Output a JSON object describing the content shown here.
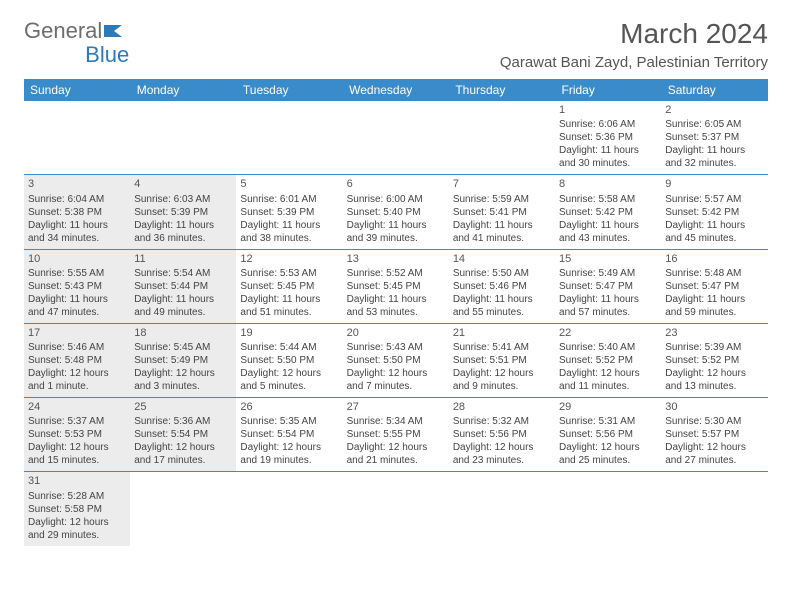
{
  "logo": {
    "part1": "General",
    "part2": "Blue"
  },
  "title": "March 2024",
  "location": "Qarawat Bani Zayd, Palestinian Territory",
  "colors": {
    "header_bg": "#3a8bc9",
    "header_text": "#ffffff",
    "body_text": "#444444",
    "shade_bg": "#ececec",
    "border": "#3a8bc9",
    "logo_gray": "#6d6d6d",
    "logo_blue": "#2e7ab8"
  },
  "typography": {
    "title_fontsize": 28,
    "location_fontsize": 15,
    "dayheader_fontsize": 12,
    "cell_fontsize": 10
  },
  "day_headers": [
    "Sunday",
    "Monday",
    "Tuesday",
    "Wednesday",
    "Thursday",
    "Friday",
    "Saturday"
  ],
  "weeks": [
    [
      {
        "empty": true
      },
      {
        "empty": true
      },
      {
        "empty": true
      },
      {
        "empty": true
      },
      {
        "empty": true
      },
      {
        "n": "1",
        "sr": "Sunrise: 6:06 AM",
        "ss": "Sunset: 5:36 PM",
        "dl1": "Daylight: 11 hours",
        "dl2": "and 30 minutes."
      },
      {
        "n": "2",
        "sr": "Sunrise: 6:05 AM",
        "ss": "Sunset: 5:37 PM",
        "dl1": "Daylight: 11 hours",
        "dl2": "and 32 minutes."
      }
    ],
    [
      {
        "n": "3",
        "shade": true,
        "sr": "Sunrise: 6:04 AM",
        "ss": "Sunset: 5:38 PM",
        "dl1": "Daylight: 11 hours",
        "dl2": "and 34 minutes."
      },
      {
        "n": "4",
        "shade": true,
        "sr": "Sunrise: 6:03 AM",
        "ss": "Sunset: 5:39 PM",
        "dl1": "Daylight: 11 hours",
        "dl2": "and 36 minutes."
      },
      {
        "n": "5",
        "sr": "Sunrise: 6:01 AM",
        "ss": "Sunset: 5:39 PM",
        "dl1": "Daylight: 11 hours",
        "dl2": "and 38 minutes."
      },
      {
        "n": "6",
        "sr": "Sunrise: 6:00 AM",
        "ss": "Sunset: 5:40 PM",
        "dl1": "Daylight: 11 hours",
        "dl2": "and 39 minutes."
      },
      {
        "n": "7",
        "sr": "Sunrise: 5:59 AM",
        "ss": "Sunset: 5:41 PM",
        "dl1": "Daylight: 11 hours",
        "dl2": "and 41 minutes."
      },
      {
        "n": "8",
        "sr": "Sunrise: 5:58 AM",
        "ss": "Sunset: 5:42 PM",
        "dl1": "Daylight: 11 hours",
        "dl2": "and 43 minutes."
      },
      {
        "n": "9",
        "sr": "Sunrise: 5:57 AM",
        "ss": "Sunset: 5:42 PM",
        "dl1": "Daylight: 11 hours",
        "dl2": "and 45 minutes."
      }
    ],
    [
      {
        "n": "10",
        "shade": true,
        "sr": "Sunrise: 5:55 AM",
        "ss": "Sunset: 5:43 PM",
        "dl1": "Daylight: 11 hours",
        "dl2": "and 47 minutes."
      },
      {
        "n": "11",
        "shade": true,
        "sr": "Sunrise: 5:54 AM",
        "ss": "Sunset: 5:44 PM",
        "dl1": "Daylight: 11 hours",
        "dl2": "and 49 minutes."
      },
      {
        "n": "12",
        "sr": "Sunrise: 5:53 AM",
        "ss": "Sunset: 5:45 PM",
        "dl1": "Daylight: 11 hours",
        "dl2": "and 51 minutes."
      },
      {
        "n": "13",
        "sr": "Sunrise: 5:52 AM",
        "ss": "Sunset: 5:45 PM",
        "dl1": "Daylight: 11 hours",
        "dl2": "and 53 minutes."
      },
      {
        "n": "14",
        "sr": "Sunrise: 5:50 AM",
        "ss": "Sunset: 5:46 PM",
        "dl1": "Daylight: 11 hours",
        "dl2": "and 55 minutes."
      },
      {
        "n": "15",
        "sr": "Sunrise: 5:49 AM",
        "ss": "Sunset: 5:47 PM",
        "dl1": "Daylight: 11 hours",
        "dl2": "and 57 minutes."
      },
      {
        "n": "16",
        "sr": "Sunrise: 5:48 AM",
        "ss": "Sunset: 5:47 PM",
        "dl1": "Daylight: 11 hours",
        "dl2": "and 59 minutes."
      }
    ],
    [
      {
        "n": "17",
        "shade": true,
        "sr": "Sunrise: 5:46 AM",
        "ss": "Sunset: 5:48 PM",
        "dl1": "Daylight: 12 hours",
        "dl2": "and 1 minute."
      },
      {
        "n": "18",
        "shade": true,
        "sr": "Sunrise: 5:45 AM",
        "ss": "Sunset: 5:49 PM",
        "dl1": "Daylight: 12 hours",
        "dl2": "and 3 minutes."
      },
      {
        "n": "19",
        "sr": "Sunrise: 5:44 AM",
        "ss": "Sunset: 5:50 PM",
        "dl1": "Daylight: 12 hours",
        "dl2": "and 5 minutes."
      },
      {
        "n": "20",
        "sr": "Sunrise: 5:43 AM",
        "ss": "Sunset: 5:50 PM",
        "dl1": "Daylight: 12 hours",
        "dl2": "and 7 minutes."
      },
      {
        "n": "21",
        "sr": "Sunrise: 5:41 AM",
        "ss": "Sunset: 5:51 PM",
        "dl1": "Daylight: 12 hours",
        "dl2": "and 9 minutes."
      },
      {
        "n": "22",
        "sr": "Sunrise: 5:40 AM",
        "ss": "Sunset: 5:52 PM",
        "dl1": "Daylight: 12 hours",
        "dl2": "and 11 minutes."
      },
      {
        "n": "23",
        "sr": "Sunrise: 5:39 AM",
        "ss": "Sunset: 5:52 PM",
        "dl1": "Daylight: 12 hours",
        "dl2": "and 13 minutes."
      }
    ],
    [
      {
        "n": "24",
        "shade": true,
        "sr": "Sunrise: 5:37 AM",
        "ss": "Sunset: 5:53 PM",
        "dl1": "Daylight: 12 hours",
        "dl2": "and 15 minutes."
      },
      {
        "n": "25",
        "shade": true,
        "sr": "Sunrise: 5:36 AM",
        "ss": "Sunset: 5:54 PM",
        "dl1": "Daylight: 12 hours",
        "dl2": "and 17 minutes."
      },
      {
        "n": "26",
        "sr": "Sunrise: 5:35 AM",
        "ss": "Sunset: 5:54 PM",
        "dl1": "Daylight: 12 hours",
        "dl2": "and 19 minutes."
      },
      {
        "n": "27",
        "sr": "Sunrise: 5:34 AM",
        "ss": "Sunset: 5:55 PM",
        "dl1": "Daylight: 12 hours",
        "dl2": "and 21 minutes."
      },
      {
        "n": "28",
        "sr": "Sunrise: 5:32 AM",
        "ss": "Sunset: 5:56 PM",
        "dl1": "Daylight: 12 hours",
        "dl2": "and 23 minutes."
      },
      {
        "n": "29",
        "sr": "Sunrise: 5:31 AM",
        "ss": "Sunset: 5:56 PM",
        "dl1": "Daylight: 12 hours",
        "dl2": "and 25 minutes."
      },
      {
        "n": "30",
        "sr": "Sunrise: 5:30 AM",
        "ss": "Sunset: 5:57 PM",
        "dl1": "Daylight: 12 hours",
        "dl2": "and 27 minutes."
      }
    ],
    [
      {
        "n": "31",
        "shade": true,
        "sr": "Sunrise: 5:28 AM",
        "ss": "Sunset: 5:58 PM",
        "dl1": "Daylight: 12 hours",
        "dl2": "and 29 minutes."
      },
      {
        "empty": true
      },
      {
        "empty": true
      },
      {
        "empty": true
      },
      {
        "empty": true
      },
      {
        "empty": true
      },
      {
        "empty": true
      }
    ]
  ]
}
